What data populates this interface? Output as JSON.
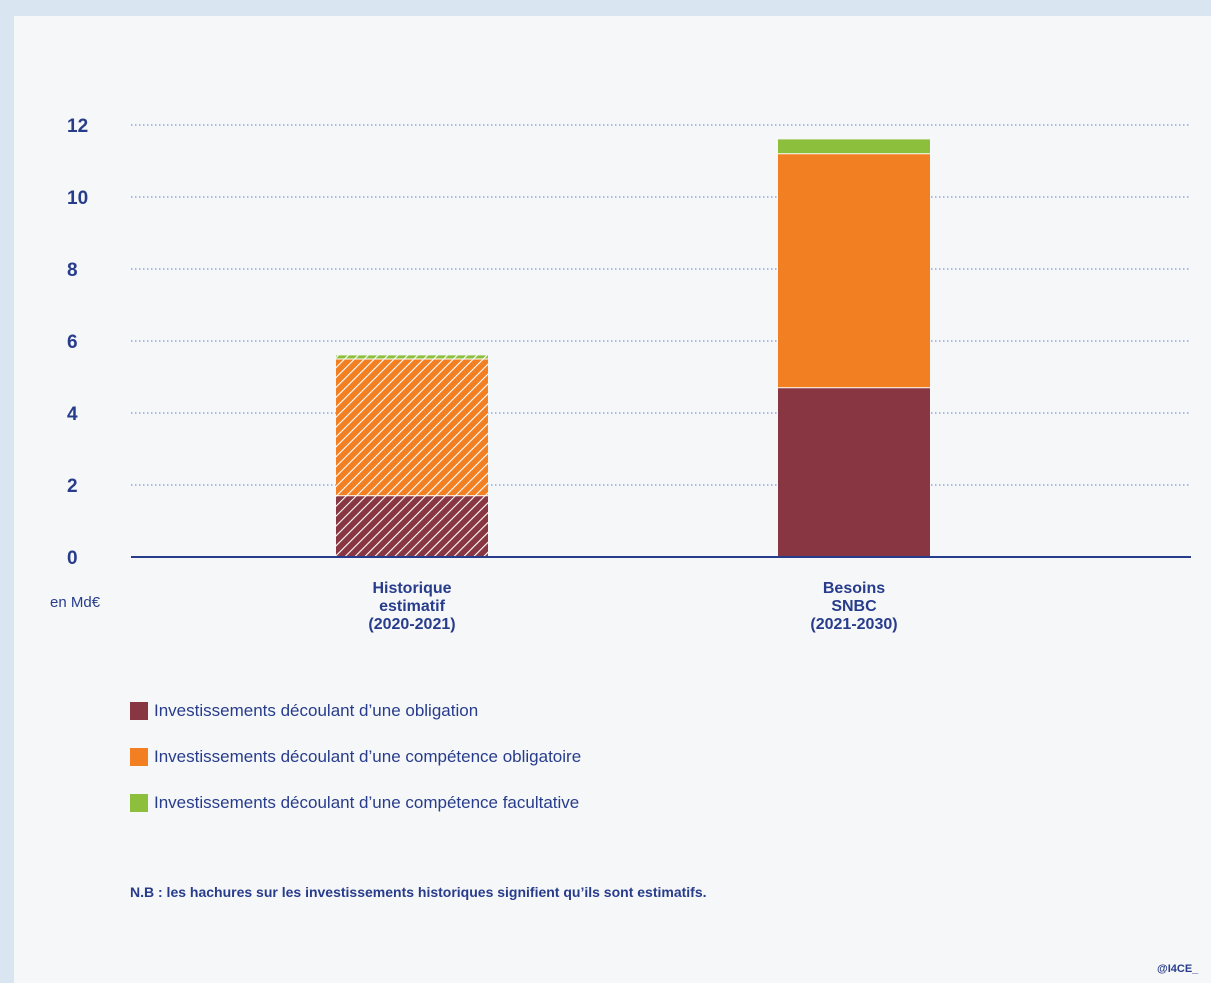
{
  "chart_data": {
    "type": "bar",
    "stacked": true,
    "unit_label": "en Md€",
    "categories": [
      {
        "lines": [
          "Historique",
          "estimatif",
          "(2020-2021)"
        ],
        "hatched": true
      },
      {
        "lines": [
          "Besoins",
          "SNBC",
          "(2021-2030)"
        ],
        "hatched": false
      }
    ],
    "series": [
      {
        "name": "Investissements découlant d’une obligation",
        "color": "#873642",
        "values": [
          1.7,
          4.7
        ]
      },
      {
        "name": "Investissements découlant d’une compétence obligatoire",
        "color": "#f28022",
        "values": [
          3.8,
          6.5
        ]
      },
      {
        "name": "Investissements découlant d’une compétence facultative",
        "color": "#8cbf3c",
        "values": [
          0.1,
          0.4
        ]
      }
    ],
    "y_ticks": [
      0,
      2,
      4,
      6,
      8,
      10,
      12
    ],
    "ylim": [
      0,
      12
    ],
    "grid": true,
    "legend_position": "bottom-left"
  },
  "note": "N.B : les hachures sur les investissements historiques signifient qu’ils sont estimatifs.",
  "credit": "@I4CE_"
}
